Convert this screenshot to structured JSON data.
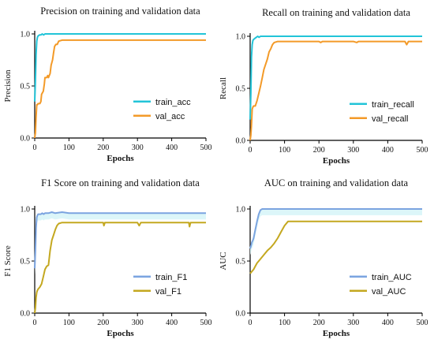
{
  "chart_data": [
    {
      "type": "line",
      "title": "Precision on training and validation data",
      "xlabel": "Epochs",
      "ylabel": "Precision",
      "xlim": [
        0,
        500
      ],
      "ylim": [
        0,
        1.0
      ],
      "xticks": [
        "0",
        "100",
        "200",
        "300",
        "400",
        "500"
      ],
      "yticks": [
        "0.0",
        "0.5",
        "1.0"
      ],
      "legend_position": "center-right",
      "series": [
        {
          "name": "train_acc",
          "color": "#22c4d8",
          "band": false,
          "x": [
            0,
            2,
            4,
            6,
            8,
            10,
            14,
            18,
            22,
            26,
            30,
            40,
            50,
            60,
            80,
            100,
            150,
            200,
            300,
            400,
            500
          ],
          "y": [
            0.35,
            0.55,
            0.8,
            0.93,
            0.97,
            0.98,
            0.99,
            0.99,
            1.0,
            0.99,
            1.0,
            1.0,
            1.0,
            1.0,
            1.0,
            1.0,
            1.0,
            1.0,
            1.0,
            1.0,
            1.0
          ]
        },
        {
          "name": "val_acc",
          "color": "#f39a28",
          "band": false,
          "x": [
            0,
            2,
            4,
            6,
            8,
            10,
            15,
            18,
            20,
            25,
            28,
            30,
            35,
            38,
            40,
            45,
            48,
            52,
            55,
            58,
            62,
            66,
            70,
            80,
            100,
            150,
            200,
            300,
            400,
            500
          ],
          "y": [
            0.0,
            0.05,
            0.2,
            0.32,
            0.32,
            0.33,
            0.33,
            0.35,
            0.42,
            0.45,
            0.52,
            0.58,
            0.58,
            0.6,
            0.58,
            0.62,
            0.7,
            0.75,
            0.82,
            0.88,
            0.9,
            0.9,
            0.93,
            0.94,
            0.94,
            0.94,
            0.94,
            0.94,
            0.94,
            0.94
          ]
        }
      ]
    },
    {
      "type": "line",
      "title": "Recall on training and validation data",
      "xlabel": "Epochs",
      "ylabel": "Recall",
      "xlim": [
        0,
        500
      ],
      "ylim": [
        0,
        1.0
      ],
      "xticks": [
        "0",
        "100",
        "200",
        "300",
        "400",
        "500"
      ],
      "yticks": [
        "0.0",
        "0.5",
        "1.0"
      ],
      "legend_position": "center-right",
      "series": [
        {
          "name": "train_recall",
          "color": "#22c4d8",
          "band": false,
          "x": [
            0,
            2,
            4,
            6,
            8,
            10,
            14,
            18,
            22,
            26,
            30,
            40,
            50,
            60,
            80,
            100,
            150,
            200,
            300,
            400,
            500
          ],
          "y": [
            0.2,
            0.45,
            0.8,
            0.92,
            0.96,
            0.97,
            0.98,
            0.99,
            1.0,
            0.99,
            1.0,
            1.0,
            1.0,
            1.0,
            1.0,
            1.0,
            1.0,
            1.0,
            1.0,
            1.0,
            1.0
          ]
        },
        {
          "name": "val_recall",
          "color": "#f39a28",
          "band": false,
          "x": [
            0,
            2,
            4,
            6,
            8,
            10,
            15,
            20,
            25,
            30,
            35,
            40,
            45,
            50,
            55,
            60,
            65,
            70,
            80,
            100,
            150,
            200,
            205,
            210,
            300,
            310,
            315,
            400,
            450,
            455,
            460,
            500
          ],
          "y": [
            0.0,
            0.05,
            0.15,
            0.3,
            0.32,
            0.33,
            0.33,
            0.38,
            0.45,
            0.52,
            0.6,
            0.68,
            0.73,
            0.78,
            0.85,
            0.88,
            0.92,
            0.94,
            0.95,
            0.95,
            0.95,
            0.95,
            0.94,
            0.95,
            0.95,
            0.94,
            0.95,
            0.95,
            0.95,
            0.92,
            0.95,
            0.95
          ]
        }
      ]
    },
    {
      "type": "line",
      "title": "F1 Score on training and validation data",
      "xlabel": "Epochs",
      "ylabel": "F1 Score",
      "xlim": [
        0,
        500
      ],
      "ylim": [
        0,
        1.0
      ],
      "xticks": [
        "0",
        "100",
        "200",
        "300",
        "400",
        "500"
      ],
      "yticks": [
        "0.0",
        "0.5",
        "1.0"
      ],
      "legend_position": "center-right",
      "series": [
        {
          "name": "train_F1",
          "color": "#7ba4e0",
          "band": true,
          "x": [
            0,
            2,
            4,
            6,
            8,
            10,
            14,
            18,
            22,
            26,
            30,
            40,
            50,
            60,
            80,
            100,
            150,
            200,
            300,
            400,
            500
          ],
          "y": [
            0.43,
            0.6,
            0.82,
            0.92,
            0.94,
            0.95,
            0.95,
            0.95,
            0.96,
            0.95,
            0.96,
            0.96,
            0.97,
            0.96,
            0.97,
            0.96,
            0.96,
            0.96,
            0.96,
            0.96,
            0.96
          ]
        },
        {
          "name": "val_F1",
          "color": "#c4a820",
          "band": false,
          "x": [
            0,
            2,
            4,
            6,
            8,
            10,
            15,
            20,
            25,
            30,
            35,
            40,
            45,
            50,
            55,
            60,
            65,
            70,
            80,
            100,
            150,
            200,
            202,
            205,
            300,
            305,
            310,
            400,
            450,
            452,
            455,
            500
          ],
          "y": [
            0.0,
            0.05,
            0.15,
            0.2,
            0.22,
            0.23,
            0.25,
            0.28,
            0.35,
            0.42,
            0.45,
            0.46,
            0.6,
            0.7,
            0.75,
            0.8,
            0.84,
            0.86,
            0.87,
            0.87,
            0.87,
            0.87,
            0.84,
            0.87,
            0.87,
            0.84,
            0.87,
            0.87,
            0.87,
            0.83,
            0.87,
            0.87
          ]
        }
      ]
    },
    {
      "type": "line",
      "title": "AUC on training and validation data",
      "xlabel": "Epochs",
      "ylabel": "AUC",
      "xlim": [
        0,
        500
      ],
      "ylim": [
        0,
        1.0
      ],
      "xticks": [
        "0",
        "100",
        "200",
        "300",
        "400",
        "500"
      ],
      "yticks": [
        "0.0",
        "0.5",
        "1.0"
      ],
      "legend_position": "center-right",
      "series": [
        {
          "name": "train_AUC",
          "color": "#7ba4e0",
          "band": true,
          "x": [
            0,
            2,
            5,
            8,
            10,
            15,
            20,
            25,
            30,
            35,
            40,
            60,
            100,
            150,
            200,
            300,
            400,
            500
          ],
          "y": [
            0.62,
            0.64,
            0.68,
            0.7,
            0.72,
            0.8,
            0.88,
            0.95,
            0.99,
            1.0,
            1.0,
            1.0,
            1.0,
            1.0,
            1.0,
            1.0,
            1.0,
            1.0
          ]
        },
        {
          "name": "val_AUC",
          "color": "#c4a820",
          "band": false,
          "x": [
            0,
            5,
            10,
            15,
            20,
            30,
            40,
            50,
            60,
            70,
            80,
            90,
            100,
            110,
            120,
            150,
            200,
            300,
            400,
            500
          ],
          "y": [
            0.38,
            0.4,
            0.42,
            0.45,
            0.48,
            0.52,
            0.56,
            0.6,
            0.63,
            0.67,
            0.72,
            0.78,
            0.84,
            0.88,
            0.88,
            0.88,
            0.88,
            0.88,
            0.88,
            0.88
          ]
        }
      ]
    }
  ]
}
